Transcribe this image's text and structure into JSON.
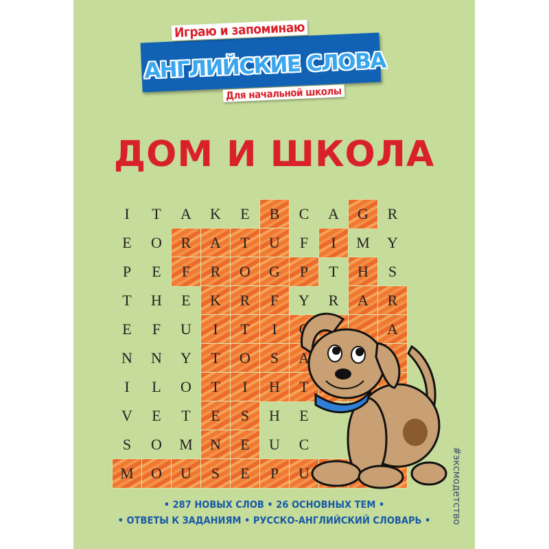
{
  "cover": {
    "background": "#c6dc9a",
    "series_title": "Играю и запоминаю",
    "series_main": "АНГЛИЙСКИЕ СЛОВА",
    "series_subtitle": "Для начальной школы",
    "title": "ДОМ И ШКОЛА",
    "bullets_line1": "• 287 НОВЫХ СЛОВ • 26 ОСНОВНЫХ ТЕМ •",
    "bullets_line2": "• ОТВЕТЫ К ЗАДАНИЯМ • РУССКО-АНГЛИЙСКИЙ СЛОВАРЬ •",
    "hashtag": "#эксмодетство",
    "colors": {
      "red": "#d8212b",
      "blue": "#1162b4",
      "light_blue": "#3aa6ee",
      "orange": "#f07a32"
    }
  },
  "word_grid": {
    "rows": [
      "ITAKEBCAGR",
      "EORATUFIMY",
      "PEFROGPTHS",
      "THEKRFYRAR",
      "EFUITIC  A",
      "NNYTOSA   ",
      "ILOTIHT   ",
      "VETESHE   ",
      "SOMNEUC   ",
      "MOUSEPU   "
    ],
    "highlighted": [
      [
        0,
        5
      ],
      [
        0,
        8
      ],
      [
        1,
        2
      ],
      [
        1,
        3
      ],
      [
        1,
        4
      ],
      [
        1,
        5
      ],
      [
        1,
        7
      ],
      [
        2,
        2
      ],
      [
        2,
        3
      ],
      [
        2,
        4
      ],
      [
        2,
        5
      ],
      [
        2,
        6
      ],
      [
        2,
        8
      ],
      [
        3,
        3
      ],
      [
        3,
        4
      ],
      [
        3,
        5
      ],
      [
        3,
        8
      ],
      [
        3,
        9
      ],
      [
        4,
        3
      ],
      [
        4,
        4
      ],
      [
        4,
        5
      ],
      [
        4,
        6
      ],
      [
        4,
        7
      ],
      [
        4,
        8
      ],
      [
        4,
        9
      ],
      [
        5,
        3
      ],
      [
        5,
        4
      ],
      [
        5,
        5
      ],
      [
        5,
        6
      ],
      [
        5,
        7
      ],
      [
        5,
        8
      ],
      [
        5,
        9
      ],
      [
        6,
        3
      ],
      [
        6,
        4
      ],
      [
        6,
        5
      ],
      [
        6,
        6
      ],
      [
        6,
        7
      ],
      [
        6,
        8
      ],
      [
        6,
        9
      ],
      [
        7,
        3
      ],
      [
        7,
        4
      ],
      [
        8,
        3
      ],
      [
        8,
        4
      ],
      [
        9,
        0
      ],
      [
        9,
        1
      ],
      [
        9,
        2
      ],
      [
        9,
        3
      ],
      [
        9,
        4
      ],
      [
        9,
        5
      ],
      [
        9,
        6
      ],
      [
        9,
        7
      ],
      [
        9,
        8
      ],
      [
        9,
        9
      ]
    ]
  },
  "illustration": "dog-with-blue-collar"
}
